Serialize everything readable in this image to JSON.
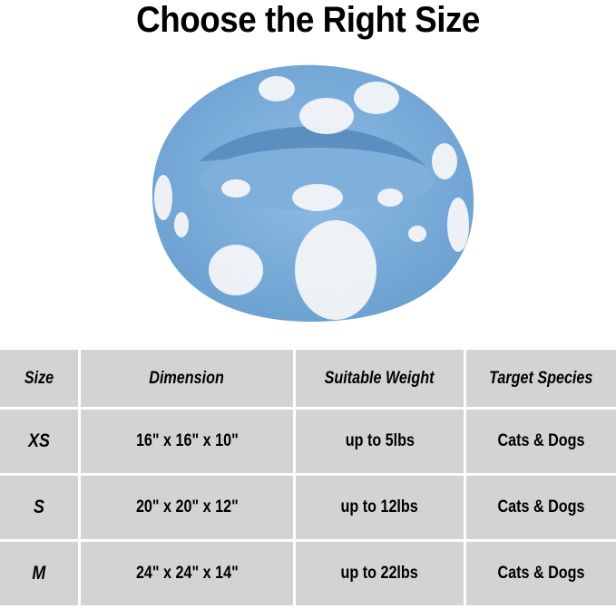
{
  "title": "Choose the Right Size",
  "product_image": {
    "description_icon": "cat-bed-photo",
    "colors": {
      "fabric": "#7fb0dc",
      "spots": "#f4f6f8"
    }
  },
  "table": {
    "headers": [
      "Size",
      "Dimension",
      "Suitable Weight",
      "Target Species"
    ],
    "rows": [
      [
        "XS",
        "16\" x 16\" x 10\"",
        "up to 5lbs",
        "Cats & Dogs"
      ],
      [
        "S",
        "20\" x 20\" x 12\"",
        "up to 12lbs",
        "Cats & Dogs"
      ],
      [
        "M",
        "24\" x 24\" x 14\"",
        "up to 22lbs",
        "Cats & Dogs"
      ]
    ]
  },
  "colors": {
    "table_bg": "#d3d3d3",
    "grid": "#ffffff"
  }
}
